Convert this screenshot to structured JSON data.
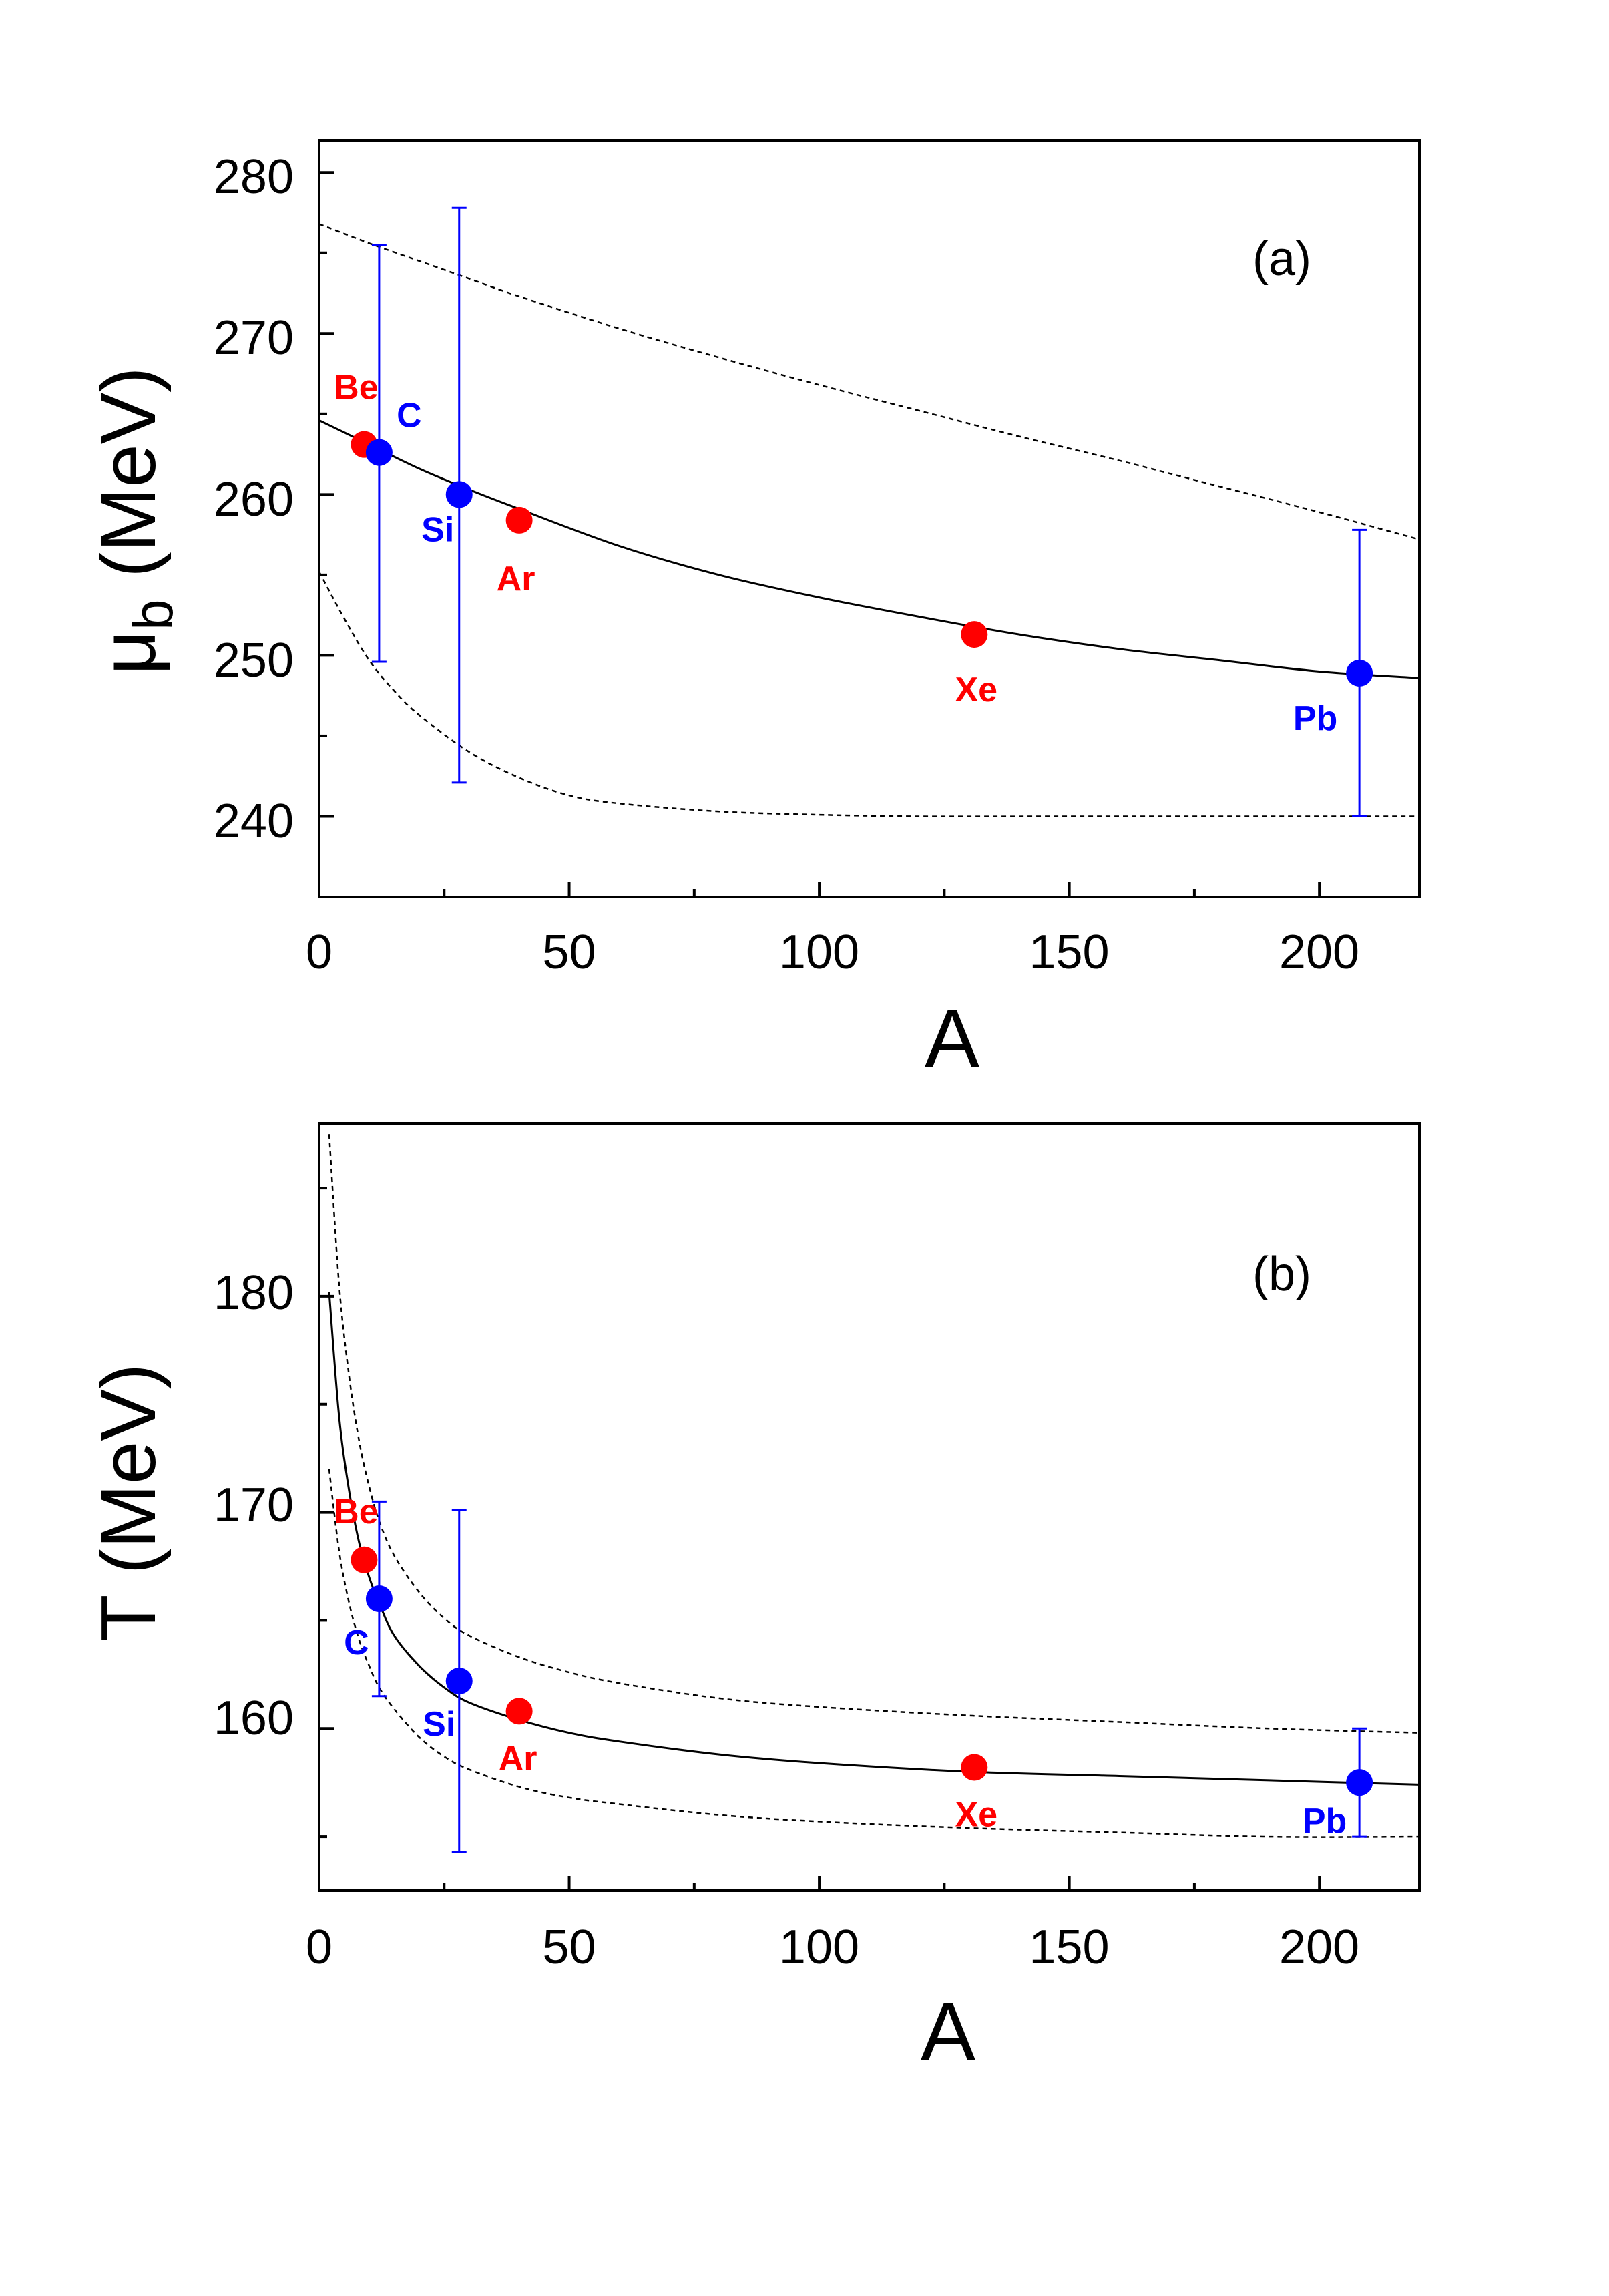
{
  "chart_data": [
    {
      "type": "scatter",
      "panel_label": "(a)",
      "xlabel": "A",
      "ylabel_main": "μ",
      "ylabel_sub": "b",
      "ylabel_unit": " (MeV)",
      "xlim": [
        0,
        220
      ],
      "ylim": [
        235,
        282
      ],
      "xticks": [
        0,
        50,
        100,
        150,
        200
      ],
      "yticks": [
        240,
        250,
        260,
        270,
        280
      ],
      "points": [
        {
          "label": "Be",
          "A": 9,
          "y": 263.1,
          "color": "#ff0000"
        },
        {
          "label": "C",
          "A": 12,
          "y": 262.6,
          "color": "#0000ff",
          "err": [
            249.6,
            275.5
          ]
        },
        {
          "label": "Si",
          "A": 28,
          "y": 260.0,
          "color": "#0000ff",
          "err": [
            242.1,
            277.8
          ]
        },
        {
          "label": "Ar",
          "A": 40,
          "y": 258.4,
          "color": "#ff0000"
        },
        {
          "label": "Xe",
          "A": 131,
          "y": 251.3,
          "color": "#ff0000"
        },
        {
          "label": "Pb",
          "A": 208,
          "y": 248.9,
          "color": "#0000ff",
          "err": [
            240.0,
            257.8
          ]
        }
      ],
      "curves": [
        {
          "name": "fit",
          "style": "solid",
          "x": [
            0,
            10,
            20,
            30,
            40,
            60,
            80,
            100,
            120,
            140,
            160,
            180,
            200,
            220
          ],
          "y": [
            264.6,
            263.1,
            261.6,
            260.3,
            259.1,
            256.8,
            255.0,
            253.6,
            252.4,
            251.3,
            250.4,
            249.7,
            249.0,
            248.6
          ]
        },
        {
          "name": "upper bound",
          "style": "dashed",
          "x": [
            0,
            10,
            20,
            30,
            40,
            60,
            80,
            100,
            120,
            140,
            160,
            180,
            200,
            220
          ],
          "y": [
            276.8,
            275.6,
            274.5,
            273.4,
            272.3,
            270.3,
            268.5,
            266.8,
            265.2,
            263.6,
            262.1,
            260.5,
            258.9,
            257.2
          ]
        },
        {
          "name": "lower bound",
          "style": "dashed",
          "x": [
            0,
            5,
            10,
            15,
            20,
            30,
            40,
            50,
            60,
            80,
            100,
            120,
            150,
            200,
            220
          ],
          "y": [
            255.2,
            252.3,
            249.7,
            247.8,
            246.3,
            244.0,
            242.4,
            241.3,
            240.8,
            240.3,
            240.1,
            240.0,
            240.0,
            240.0,
            240.0
          ]
        }
      ]
    },
    {
      "type": "scatter",
      "panel_label": "(b)",
      "xlabel": "A",
      "ylabel_main": "T",
      "ylabel_sub": "",
      "ylabel_unit": " (MeV)",
      "xlim": [
        0,
        220
      ],
      "ylim": [
        152.5,
        188
      ],
      "xticks": [
        0,
        50,
        100,
        150,
        200
      ],
      "yticks": [
        160,
        170,
        180
      ],
      "points": [
        {
          "label": "Be",
          "A": 9,
          "y": 167.8,
          "color": "#ff0000"
        },
        {
          "label": "C",
          "A": 12,
          "y": 166.0,
          "color": "#0000ff",
          "err": [
            161.5,
            170.5
          ]
        },
        {
          "label": "Si",
          "A": 28,
          "y": 162.2,
          "color": "#0000ff",
          "err": [
            154.3,
            170.1
          ]
        },
        {
          "label": "Ar",
          "A": 40,
          "y": 160.8,
          "color": "#ff0000"
        },
        {
          "label": "Xe",
          "A": 131,
          "y": 158.2,
          "color": "#ff0000"
        },
        {
          "label": "Pb",
          "A": 208,
          "y": 157.5,
          "color": "#0000ff",
          "err": [
            155.0,
            160.0
          ]
        }
      ],
      "curves": [
        {
          "name": "fit",
          "style": "solid",
          "x": [
            2,
            4,
            6,
            8,
            10,
            12,
            15,
            20,
            25,
            30,
            40,
            50,
            60,
            80,
            100,
            130,
            160,
            190,
            220
          ],
          "y": [
            180.2,
            174.4,
            171.0,
            168.6,
            167.0,
            165.8,
            164.3,
            162.9,
            161.9,
            161.2,
            160.4,
            159.8,
            159.4,
            158.8,
            158.4,
            158.0,
            157.8,
            157.6,
            157.4
          ]
        },
        {
          "name": "upper bound",
          "style": "dashed",
          "x": [
            2,
            4,
            6,
            8,
            10,
            12,
            15,
            20,
            25,
            30,
            40,
            50,
            60,
            80,
            100,
            130,
            160,
            190,
            220
          ],
          "y": [
            187.5,
            180.5,
            176.3,
            173.3,
            171.2,
            169.6,
            168.0,
            166.3,
            165.1,
            164.3,
            163.3,
            162.6,
            162.1,
            161.4,
            161.0,
            160.6,
            160.3,
            160.0,
            159.8
          ]
        },
        {
          "name": "lower bound",
          "style": "dashed",
          "x": [
            2,
            4,
            6,
            8,
            10,
            12,
            15,
            20,
            25,
            30,
            40,
            50,
            60,
            80,
            100,
            130,
            160,
            190,
            220
          ],
          "y": [
            172.0,
            168.2,
            165.8,
            164.1,
            162.9,
            161.9,
            160.9,
            159.6,
            158.7,
            158.1,
            157.3,
            156.8,
            156.5,
            156.0,
            155.7,
            155.4,
            155.2,
            155.0,
            155.0
          ]
        }
      ]
    }
  ]
}
